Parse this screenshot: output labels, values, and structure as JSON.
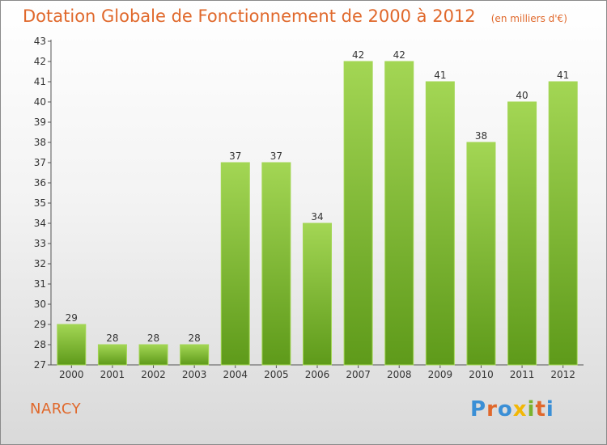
{
  "chart_data": {
    "type": "bar",
    "title": "Dotation Globale de Fonctionnement de 2000 à 2012",
    "unit_note": "(en milliers d'€)",
    "categories": [
      "2000",
      "2001",
      "2002",
      "2003",
      "2004",
      "2005",
      "2006",
      "2007",
      "2008",
      "2009",
      "2010",
      "2011",
      "2012"
    ],
    "values": [
      29,
      28,
      28,
      28,
      37,
      37,
      34,
      42,
      42,
      41,
      38,
      40,
      41
    ],
    "ylim": [
      27,
      43
    ],
    "yticks": [
      27,
      28,
      29,
      30,
      31,
      32,
      33,
      34,
      35,
      36,
      37,
      38,
      39,
      40,
      41,
      42,
      43
    ],
    "grid": false,
    "xlabel": "",
    "ylabel": "",
    "colors": {
      "bar": "#7ab32e",
      "bar_light": "#a3d654",
      "bar_dark": "#5e9a1a",
      "title": "#e0682b"
    }
  },
  "commune": "NARCY",
  "logo": {
    "letters": [
      "P",
      "r",
      "o",
      "x",
      "i",
      "t",
      "i"
    ],
    "colors": [
      "#3a8fd6",
      "#e0682b",
      "#3a8fd6",
      "#f2b705",
      "#7ab32e",
      "#e0682b",
      "#3a8fd6"
    ]
  }
}
